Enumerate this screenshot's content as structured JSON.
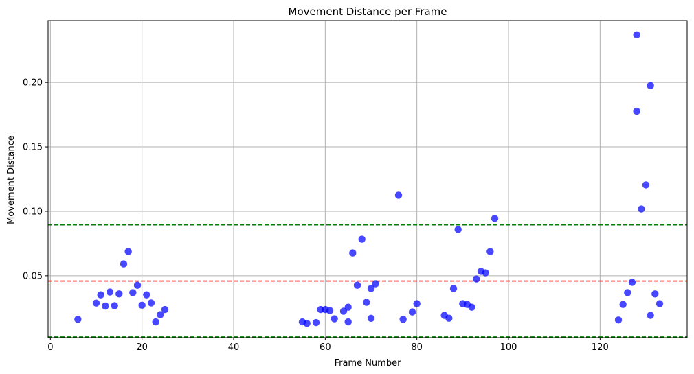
{
  "chart_data": {
    "type": "scatter",
    "title": "Movement Distance per Frame",
    "xlabel": "Frame Number",
    "ylabel": "Movement Distance",
    "xlim": [
      -0.5,
      139
    ],
    "ylim": [
      0.002,
      0.248
    ],
    "x_ticks": [
      0,
      20,
      40,
      60,
      80,
      100,
      120
    ],
    "y_ticks": [
      0.05,
      0.1,
      0.15,
      0.2
    ],
    "y_tick_labels": [
      "0.05",
      "0.10",
      "0.15",
      "0.20"
    ],
    "grid": true,
    "point_color": "#0000ff",
    "reference_lines": [
      {
        "y": 0.0895,
        "color": "#008000",
        "style": "dashed"
      },
      {
        "y": 0.0459,
        "color": "#ff0000",
        "style": "dashed"
      },
      {
        "y": 0.0026,
        "color": "#008000",
        "style": "dashed"
      }
    ],
    "points": [
      {
        "x": 6,
        "y": 0.0162
      },
      {
        "x": 10,
        "y": 0.0288
      },
      {
        "x": 11,
        "y": 0.0352
      },
      {
        "x": 12,
        "y": 0.0265
      },
      {
        "x": 13,
        "y": 0.0374
      },
      {
        "x": 14,
        "y": 0.0267
      },
      {
        "x": 15,
        "y": 0.0359
      },
      {
        "x": 16,
        "y": 0.0592
      },
      {
        "x": 17,
        "y": 0.0688
      },
      {
        "x": 18,
        "y": 0.0369
      },
      {
        "x": 19,
        "y": 0.0426
      },
      {
        "x": 20,
        "y": 0.0271
      },
      {
        "x": 21,
        "y": 0.0352
      },
      {
        "x": 22,
        "y": 0.0289
      },
      {
        "x": 23,
        "y": 0.0142
      },
      {
        "x": 24,
        "y": 0.0198
      },
      {
        "x": 25,
        "y": 0.0238
      },
      {
        "x": 55,
        "y": 0.0142
      },
      {
        "x": 56,
        "y": 0.0131
      },
      {
        "x": 58,
        "y": 0.0137
      },
      {
        "x": 59,
        "y": 0.0238
      },
      {
        "x": 60,
        "y": 0.0238
      },
      {
        "x": 61,
        "y": 0.023
      },
      {
        "x": 62,
        "y": 0.0166
      },
      {
        "x": 64,
        "y": 0.0225
      },
      {
        "x": 65,
        "y": 0.0256
      },
      {
        "x": 65,
        "y": 0.0142
      },
      {
        "x": 66,
        "y": 0.0677
      },
      {
        "x": 67,
        "y": 0.0426
      },
      {
        "x": 68,
        "y": 0.0784
      },
      {
        "x": 69,
        "y": 0.0294
      },
      {
        "x": 70,
        "y": 0.0401
      },
      {
        "x": 70,
        "y": 0.017
      },
      {
        "x": 71,
        "y": 0.0438
      },
      {
        "x": 76,
        "y": 0.1125
      },
      {
        "x": 77,
        "y": 0.0162
      },
      {
        "x": 79,
        "y": 0.0219
      },
      {
        "x": 80,
        "y": 0.0283
      },
      {
        "x": 86,
        "y": 0.0193
      },
      {
        "x": 87,
        "y": 0.0171
      },
      {
        "x": 88,
        "y": 0.0401
      },
      {
        "x": 89,
        "y": 0.0859
      },
      {
        "x": 90,
        "y": 0.0283
      },
      {
        "x": 91,
        "y": 0.0277
      },
      {
        "x": 92,
        "y": 0.0256
      },
      {
        "x": 93,
        "y": 0.0475
      },
      {
        "x": 94,
        "y": 0.0534
      },
      {
        "x": 95,
        "y": 0.0523
      },
      {
        "x": 96,
        "y": 0.0688
      },
      {
        "x": 97,
        "y": 0.0945
      },
      {
        "x": 124,
        "y": 0.0157
      },
      {
        "x": 125,
        "y": 0.0277
      },
      {
        "x": 126,
        "y": 0.0369
      },
      {
        "x": 127,
        "y": 0.0449
      },
      {
        "x": 128,
        "y": 0.2369
      },
      {
        "x": 128,
        "y": 0.1777
      },
      {
        "x": 129,
        "y": 0.1018
      },
      {
        "x": 130,
        "y": 0.1205
      },
      {
        "x": 131,
        "y": 0.1975
      },
      {
        "x": 131,
        "y": 0.0193
      },
      {
        "x": 132,
        "y": 0.0359
      },
      {
        "x": 133,
        "y": 0.0283
      }
    ]
  }
}
